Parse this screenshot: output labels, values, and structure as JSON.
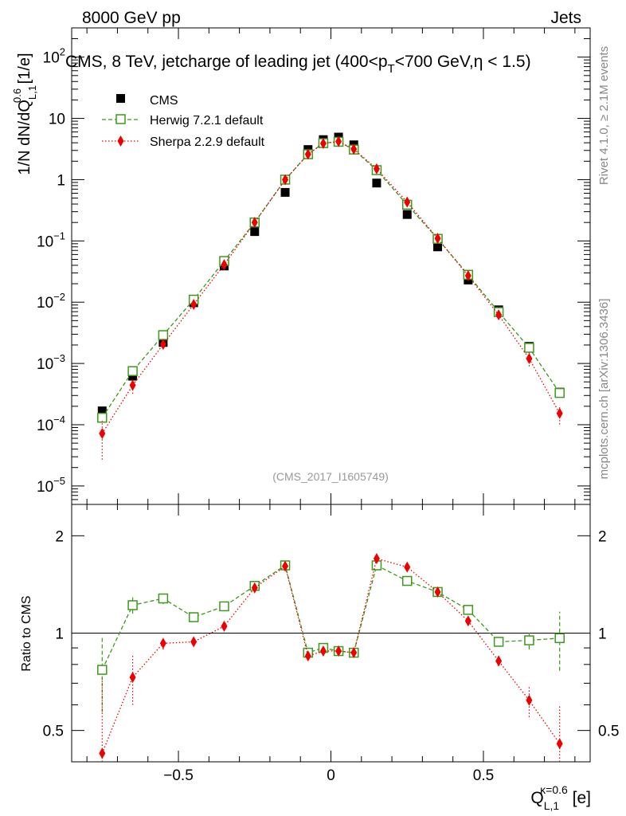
{
  "header": {
    "left": "8000 GeV pp",
    "right": "Jets"
  },
  "side_labels": {
    "rivet": "Rivet 4.1.0, ≥ 2.1M events",
    "mcplots": "mcplots.cern.ch [arXiv:1306.3436]"
  },
  "watermark": "(CMS_2017_I1605749)",
  "chart_data": [
    {
      "type": "scatter",
      "scale": "log",
      "title_parts": {
        "before": "CMS, 8 TeV, jetcharge of leading jet (400<p",
        "sub": "T",
        "after": "<700 GeV,η < 1.5)"
      },
      "ylabel": {
        "main": "1/N dN/dQ",
        "sup": "0.6",
        "sub": "L,1",
        "unit": " [1/e]"
      },
      "xlim": [
        -0.85,
        0.85
      ],
      "ylim": [
        5e-06,
        300
      ],
      "yticks": [
        {
          "value": 1e-05,
          "base": "10",
          "exp": "−5"
        },
        {
          "value": 0.0001,
          "base": "10",
          "exp": "−4"
        },
        {
          "value": 0.001,
          "base": "10",
          "exp": "−3"
        },
        {
          "value": 0.01,
          "base": "10",
          "exp": "−2"
        },
        {
          "value": 0.1,
          "base": "10",
          "exp": "−1"
        },
        {
          "value": 1,
          "base": "1",
          "exp": ""
        },
        {
          "value": 10,
          "base": "10",
          "exp": ""
        },
        {
          "value": 100,
          "base": "10",
          "exp": "2"
        }
      ],
      "x": [
        -0.75,
        -0.65,
        -0.55,
        -0.45,
        -0.35,
        -0.25,
        -0.15,
        -0.075,
        -0.025,
        0.025,
        0.075,
        0.15,
        0.25,
        0.35,
        0.45,
        0.55,
        0.65,
        0.75
      ],
      "series": [
        {
          "name": "CMS",
          "color": "#000000",
          "marker": "filled-square",
          "line": "none",
          "values": [
            0.000168,
            0.00062,
            0.0022,
            0.0098,
            0.039,
            0.142,
            0.62,
            3.1,
            4.5,
            4.95,
            3.7,
            0.88,
            0.27,
            0.08,
            0.023,
            0.0075,
            0.0019,
            0.00034
          ]
        },
        {
          "name": "Herwig 7.2.1 default",
          "color": "#3a9a1a",
          "marker": "open-square",
          "line": "dashed",
          "values": [
            0.00013,
            0.00075,
            0.0029,
            0.011,
            0.047,
            0.2,
            1.0,
            2.6,
            3.95,
            4.15,
            3.1,
            1.43,
            0.39,
            0.108,
            0.028,
            0.0069,
            0.0018,
            0.00033
          ]
        },
        {
          "name": "Sherpa 2.2.9 default",
          "color": "#ee0000",
          "marker": "filled-diamond",
          "line": "dotted",
          "values": [
            7.2e-05,
            0.00044,
            0.00205,
            0.0092,
            0.041,
            0.2,
            1.0,
            2.6,
            3.9,
            4.2,
            3.15,
            1.5,
            0.43,
            0.11,
            0.027,
            0.0062,
            0.0012,
            0.000153
          ],
          "yerr_low": [
            4.5e-05,
            0.00012,
            0.0003,
            0.0012,
            0.003,
            0.01,
            0.03,
            0.05,
            0.06,
            0.06,
            0.05,
            0.04,
            0.02,
            0.008,
            0.003,
            0.001,
            0.0003,
            5.2e-05
          ],
          "yerr_high": [
            4.5e-05,
            0.00012,
            0.0003,
            0.0012,
            0.003,
            0.01,
            0.03,
            0.05,
            0.06,
            0.06,
            0.05,
            0.04,
            0.02,
            0.008,
            0.003,
            0.001,
            0.0003,
            5.2e-05
          ]
        }
      ]
    },
    {
      "type": "scatter",
      "scale": "log",
      "ylabel": "Ratio to CMS",
      "xlabel": {
        "main": "Q",
        "sup": "κ=0.6",
        "sub": "L,1",
        "unit": " [e]"
      },
      "xlim": [
        -0.85,
        0.85
      ],
      "ylim": [
        0.4,
        2.5
      ],
      "yticks": [
        0.5,
        1,
        2
      ],
      "xticks": [
        -0.5,
        0,
        0.5
      ],
      "xtick_labels": [
        "−0.5",
        "0",
        "0.5"
      ],
      "reference_line": 1,
      "x": [
        -0.75,
        -0.65,
        -0.55,
        -0.45,
        -0.35,
        -0.25,
        -0.15,
        -0.075,
        -0.025,
        0.025,
        0.075,
        0.15,
        0.25,
        0.35,
        0.45,
        0.55,
        0.65,
        0.75
      ],
      "series": [
        {
          "name": "Herwig 7.2.1 default",
          "color": "#3a9a1a",
          "marker": "open-square",
          "line": "dashed",
          "values": [
            0.77,
            1.22,
            1.28,
            1.12,
            1.21,
            1.4,
            1.62,
            0.87,
            0.9,
            0.88,
            0.87,
            1.62,
            1.45,
            1.34,
            1.18,
            0.94,
            0.95,
            0.965
          ],
          "yerr_low": [
            0.2,
            0.07,
            0.05,
            0.02,
            0.02,
            0.02,
            0.02,
            0.015,
            0.015,
            0.015,
            0.015,
            0.02,
            0.02,
            0.02,
            0.02,
            0.03,
            0.06,
            0.2
          ],
          "yerr_high": [
            0.2,
            0.07,
            0.05,
            0.02,
            0.02,
            0.02,
            0.02,
            0.015,
            0.015,
            0.015,
            0.015,
            0.02,
            0.02,
            0.02,
            0.02,
            0.03,
            0.06,
            0.2
          ]
        },
        {
          "name": "Sherpa 2.2.9 default",
          "color": "#ee0000",
          "marker": "filled-diamond",
          "line": "dotted",
          "values": [
            0.425,
            0.73,
            0.93,
            0.94,
            1.05,
            1.38,
            1.61,
            0.85,
            0.88,
            0.88,
            0.87,
            1.7,
            1.6,
            1.34,
            1.09,
            0.82,
            0.62,
            0.455
          ],
          "yerr_low": [
            0.3,
            0.13,
            0.04,
            0.02,
            0.02,
            0.02,
            0.02,
            0.015,
            0.015,
            0.015,
            0.015,
            0.02,
            0.02,
            0.02,
            0.02,
            0.03,
            0.07,
            0.14
          ],
          "yerr_high": [
            0.3,
            0.13,
            0.04,
            0.02,
            0.02,
            0.02,
            0.02,
            0.015,
            0.015,
            0.015,
            0.015,
            0.02,
            0.02,
            0.02,
            0.02,
            0.03,
            0.07,
            0.14
          ]
        }
      ]
    }
  ]
}
